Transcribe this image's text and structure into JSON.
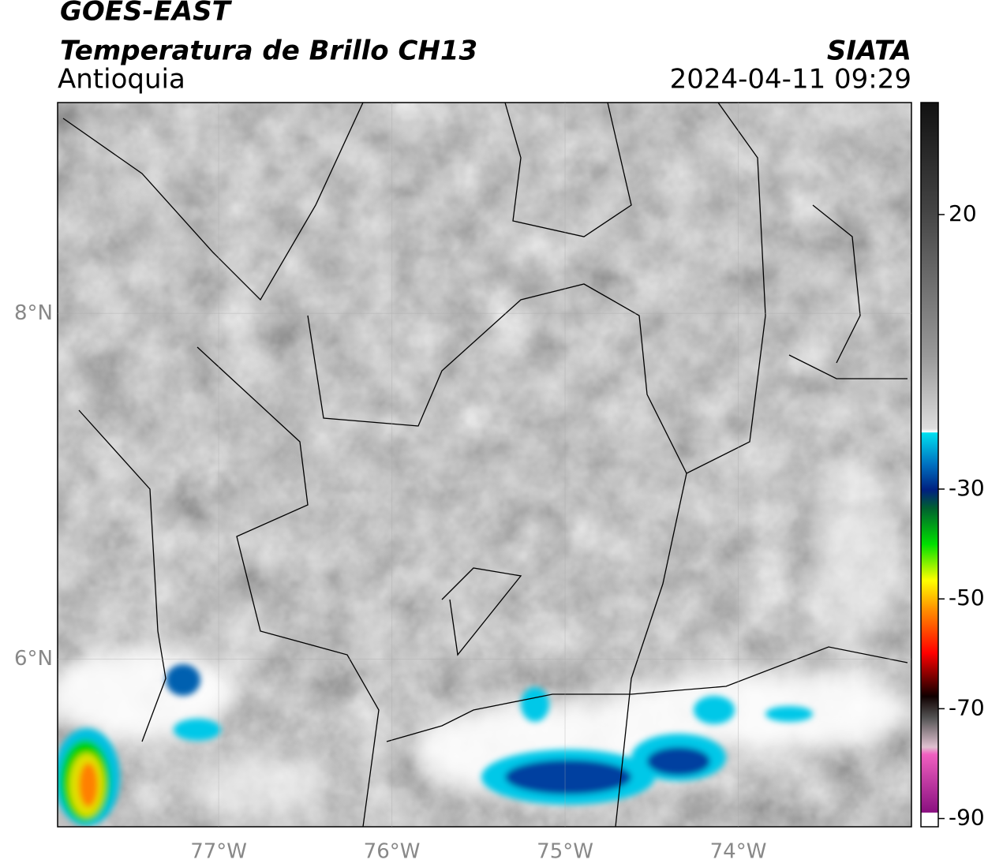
{
  "header": {
    "title": "GOES-EAST",
    "subtitle": "Temperatura de Brillo CH13",
    "region": "Antioquia",
    "source": "SIATA",
    "datetime": "2024-04-11 09:29"
  },
  "map": {
    "xlim": [
      -77.93,
      -73.0
    ],
    "ylim": [
      5.03,
      9.22
    ],
    "xticks": [
      {
        "value": -77,
        "label": "77°W"
      },
      {
        "value": -76,
        "label": "76°W"
      },
      {
        "value": -75,
        "label": "75°W"
      },
      {
        "value": -74,
        "label": "74°W"
      }
    ],
    "yticks": [
      {
        "value": 8,
        "label": "8°N"
      },
      {
        "value": 6,
        "label": "6°N"
      }
    ],
    "grid": true
  },
  "colorbar": {
    "lim": [
      -91.5,
      40.4
    ],
    "ticks": [
      20,
      -30,
      -50,
      -70,
      -90
    ]
  }
}
